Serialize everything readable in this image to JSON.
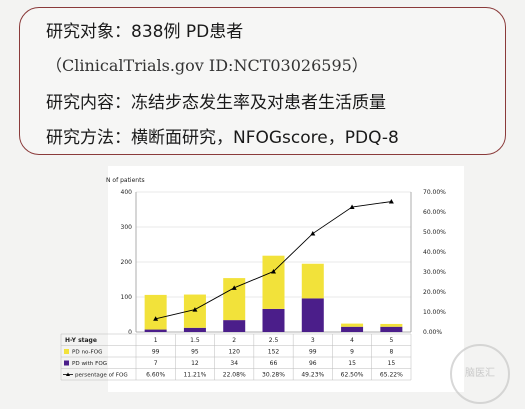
{
  "text": {
    "line1": "研究对象：838例 PD患者",
    "line2": "（ClinicalTrials.gov ID:NCT03026595）",
    "line3": "研究内容：冻结步态发生率及对患者生活质量",
    "line4": "研究方法：横断面研究，NFOGscore，PDQ-8"
  },
  "watermark": "脑医汇",
  "chart_data": {
    "type": "bar",
    "stacked": true,
    "ylabel": "N of patients",
    "ylim": [
      0,
      400
    ],
    "yticks": [
      "0",
      "100",
      "200",
      "300",
      "400"
    ],
    "y2lim": [
      0,
      70
    ],
    "y2ticks": [
      "0.00%",
      "10.00%",
      "20.00%",
      "30.00%",
      "40.00%",
      "50.00%",
      "60.00%",
      "70.00%"
    ],
    "table_header": "H-Y stage",
    "categories": [
      "1",
      "1.5",
      "2",
      "2.5",
      "3",
      "4",
      "5"
    ],
    "series": [
      {
        "name": "PD no-FOG",
        "color": "#f2e23a",
        "values": [
          99,
          95,
          120,
          152,
          99,
          9,
          8
        ],
        "labels": [
          "99",
          "95",
          "120",
          "152",
          "99",
          "9",
          "8"
        ]
      },
      {
        "name": "PD with FOG",
        "color": "#4b1e8a",
        "values": [
          7,
          12,
          34,
          66,
          96,
          15,
          15
        ],
        "labels": [
          "7",
          "12",
          "34",
          "66",
          "96",
          "15",
          "15"
        ]
      },
      {
        "name": "persentage of FOG",
        "color": "#000000",
        "values": [
          6.6,
          11.21,
          22.08,
          30.28,
          49.23,
          62.5,
          65.22
        ],
        "labels": [
          "6.60%",
          "11.21%",
          "22.08%",
          "30.28%",
          "49.23%",
          "62.50%",
          "65.22%"
        ]
      }
    ]
  }
}
